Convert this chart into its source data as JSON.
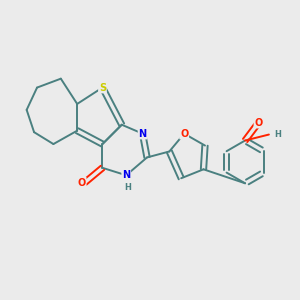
{
  "background_color": "#ebebeb",
  "bond_color": "#4a8080",
  "bond_width": 1.4,
  "S_color": "#cccc00",
  "N_color": "#0000ee",
  "O_color": "#ff2200",
  "H_color": "#4a8080",
  "figsize": [
    3.0,
    3.0
  ],
  "dpi": 100,
  "xlim": [
    0,
    10
  ],
  "ylim": [
    0,
    10
  ]
}
